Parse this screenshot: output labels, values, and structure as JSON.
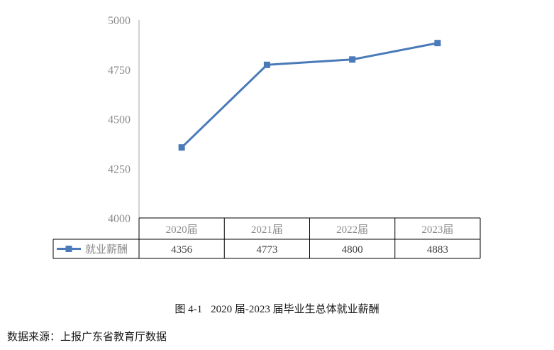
{
  "chart_data": {
    "type": "line",
    "title": "",
    "xlabel": "",
    "ylabel": "",
    "categories": [
      "2020届",
      "2021届",
      "2022届",
      "2023届"
    ],
    "series": [
      {
        "name": "就业薪酬",
        "values": [
          4356,
          4773,
          4800,
          4883
        ],
        "color": "#4a7ab8"
      }
    ],
    "y_ticks": [
      "4000",
      "4250",
      "4500",
      "4750",
      "5000"
    ],
    "ylim": [
      4000,
      5000
    ],
    "grid": false,
    "legend": "data-table-row",
    "data_table": {
      "row_label": "就业薪酬",
      "values": [
        "4356",
        "4773",
        "4800",
        "4883"
      ]
    }
  },
  "caption": {
    "label": "图 4-1",
    "text": "2020 届-2023 届毕业生总体就业薪酬"
  },
  "source": "数据来源：上报广东省教育厅数据"
}
